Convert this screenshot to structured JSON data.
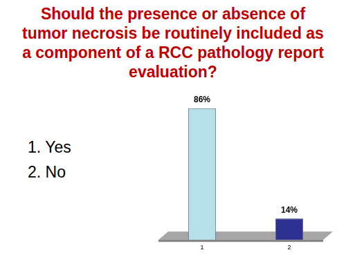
{
  "chart_data": {
    "type": "bar",
    "title": "Should the presence or absence of tumor necrosis be routinely included as a component of a RCC pathology report evaluation?",
    "annotations": [
      "1. Yes",
      "2. No"
    ],
    "categories": [
      "1",
      "2"
    ],
    "values": [
      86,
      14
    ],
    "value_labels": [
      "86%",
      "14%"
    ],
    "colors": [
      "#b8e0ea",
      "#2e3192"
    ],
    "data_labels": true,
    "tick_labels": "x",
    "grid": false
  }
}
